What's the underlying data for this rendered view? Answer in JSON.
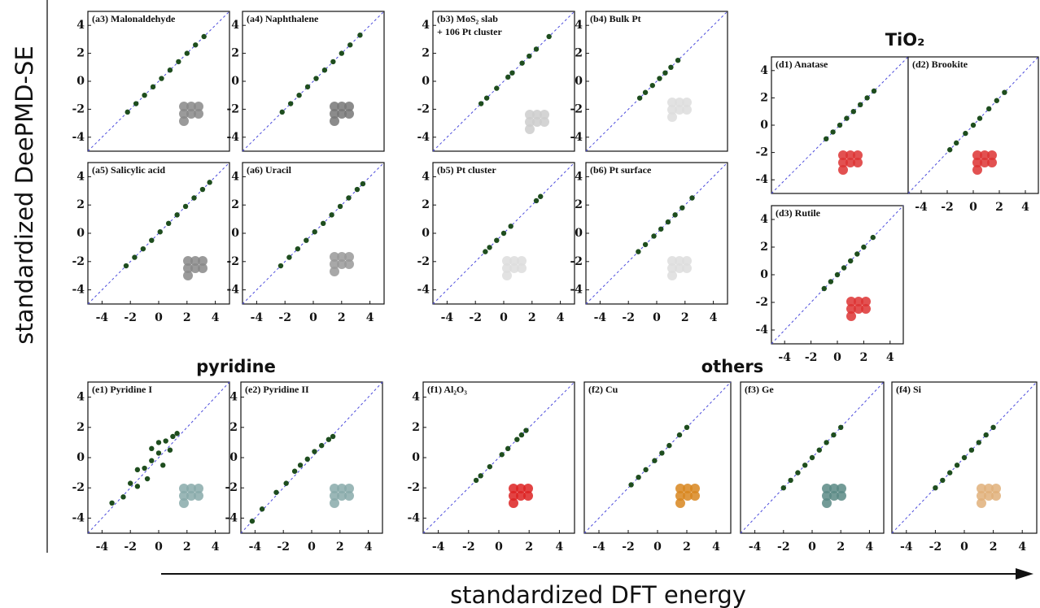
{
  "figure": {
    "y_label": "standardized DeePMD-SE",
    "x_label": "standardized DFT energy",
    "group_titles": [
      "TiO₂",
      "pyridine",
      "others"
    ]
  },
  "chart_data": [
    {
      "type": "scatter",
      "title": "(a3) Malonaldehyde",
      "color": "#1e4d1e",
      "xlim": [
        -5,
        5
      ],
      "ylim": [
        -5,
        5
      ],
      "yticks": [
        -4,
        -2,
        0,
        2,
        4
      ],
      "x": [
        -2.2,
        -1.6,
        -1,
        -0.4,
        0.2,
        0.8,
        1.4,
        2,
        2.6,
        3.2
      ],
      "y": [
        -2.2,
        -1.6,
        -1,
        -0.4,
        0.2,
        0.8,
        1.4,
        2,
        2.6,
        3.2
      ]
    },
    {
      "type": "scatter",
      "title": "(a4) Naphthalene",
      "color": "#1e4d1e",
      "xlim": [
        -5,
        5
      ],
      "ylim": [
        -5,
        5
      ],
      "yticks": [
        -4,
        -2,
        0,
        2,
        4
      ],
      "x": [
        -2.2,
        -1.6,
        -1,
        -0.4,
        0.2,
        0.8,
        1.4,
        2,
        2.6,
        3.3
      ],
      "y": [
        -2.2,
        -1.6,
        -1,
        -0.4,
        0.2,
        0.8,
        1.4,
        2,
        2.6,
        3.3
      ]
    },
    {
      "type": "scatter",
      "title": "(b3) MoS₂ slab",
      "subtitle": "+ 106 Pt cluster",
      "color": "#1e4d1e",
      "xlim": [
        -5,
        5
      ],
      "ylim": [
        -5,
        5
      ],
      "yticks": [
        -4,
        -2,
        0,
        2,
        4
      ],
      "x": [
        -1.6,
        -1.2,
        -0.5,
        0.3,
        0.6,
        1.3,
        1.8,
        2.3,
        3.2
      ],
      "y": [
        -1.6,
        -1.2,
        -0.5,
        0.3,
        0.6,
        1.3,
        1.8,
        2.3,
        3.2
      ]
    },
    {
      "type": "scatter",
      "title": "(b4) Bulk Pt",
      "color": "#1e4d1e",
      "xlim": [
        -5,
        5
      ],
      "ylim": [
        -5,
        5
      ],
      "yticks": [
        -4,
        -2,
        0,
        2,
        4
      ],
      "x": [
        -1.2,
        -0.8,
        -0.3,
        0.2,
        0.6,
        1,
        1.5
      ],
      "y": [
        -1.2,
        -0.8,
        -0.3,
        0.2,
        0.6,
        1,
        1.5
      ]
    },
    {
      "type": "scatter",
      "title": "(a5) Salicylic acid",
      "color": "#1e4d1e",
      "xlim": [
        -5,
        5
      ],
      "ylim": [
        -5,
        5
      ],
      "xticks": [
        -4,
        -2,
        0,
        2,
        4
      ],
      "yticks": [
        -4,
        -2,
        0,
        2,
        4
      ],
      "x": [
        -2.3,
        -1.7,
        -1.1,
        -0.5,
        0.1,
        0.7,
        1.3,
        1.9,
        2.5,
        3.1,
        3.6
      ],
      "y": [
        -2.3,
        -1.7,
        -1.1,
        -0.5,
        0.1,
        0.7,
        1.3,
        1.9,
        2.5,
        3.1,
        3.6
      ]
    },
    {
      "type": "scatter",
      "title": "(a6) Uracil",
      "color": "#1e4d1e",
      "xlim": [
        -5,
        5
      ],
      "ylim": [
        -5,
        5
      ],
      "xticks": [
        -4,
        -2,
        0,
        2,
        4
      ],
      "yticks": [
        -4,
        -2,
        0,
        2,
        4
      ],
      "x": [
        -2.3,
        -1.7,
        -1.1,
        -0.5,
        0.1,
        0.7,
        1.3,
        1.9,
        2.5,
        3.1,
        3.5
      ],
      "y": [
        -2.3,
        -1.7,
        -1.1,
        -0.5,
        0.1,
        0.7,
        1.3,
        1.9,
        2.5,
        3.1,
        3.5
      ]
    },
    {
      "type": "scatter",
      "title": "(b5) Pt cluster",
      "color": "#1e4d1e",
      "xlim": [
        -5,
        5
      ],
      "ylim": [
        -5,
        5
      ],
      "xticks": [
        -4,
        -2,
        0,
        2,
        4
      ],
      "yticks": [
        -4,
        -2,
        0,
        2,
        4
      ],
      "x": [
        -1.3,
        -1,
        -0.5,
        0,
        0.5,
        2.3,
        2.6
      ],
      "y": [
        -1.3,
        -1,
        -0.5,
        0,
        0.5,
        2.3,
        2.6
      ]
    },
    {
      "type": "scatter",
      "title": "(b6) Pt surface",
      "color": "#1e4d1e",
      "xlim": [
        -5,
        5
      ],
      "ylim": [
        -5,
        5
      ],
      "xticks": [
        -4,
        -2,
        0,
        2,
        4
      ],
      "yticks": [
        -4,
        -2,
        0,
        2,
        4
      ],
      "x": [
        -1.3,
        -0.8,
        -0.2,
        0.3,
        0.8,
        1.3,
        1.8,
        2.5
      ],
      "y": [
        -1.3,
        -0.8,
        -0.2,
        0.3,
        0.8,
        1.3,
        1.8,
        2.5
      ]
    },
    {
      "type": "scatter",
      "title": "(d1) Anatase",
      "color": "#1e4d1e",
      "xlim": [
        -5,
        5
      ],
      "ylim": [
        -5,
        5
      ],
      "yticks": [
        -4,
        -2,
        0,
        2,
        4
      ],
      "x": [
        -1,
        -0.5,
        0,
        0.5,
        1,
        1.5,
        2,
        2.5
      ],
      "y": [
        -1,
        -0.5,
        0,
        0.5,
        1,
        1.5,
        2,
        2.5
      ]
    },
    {
      "type": "scatter",
      "title": "(d2) Brookite",
      "color": "#1e4d1e",
      "xlim": [
        -5,
        5
      ],
      "ylim": [
        -5,
        5
      ],
      "xticks": [
        -4,
        -2,
        0,
        2,
        4
      ],
      "x": [
        -1.8,
        -1.3,
        -0.6,
        0,
        0.5,
        1.2,
        1.8,
        2.4
      ],
      "y": [
        -1.8,
        -1.3,
        -0.6,
        0,
        0.5,
        1.2,
        1.8,
        2.4
      ]
    },
    {
      "type": "scatter",
      "title": "(d3) Rutile",
      "color": "#1e4d1e",
      "xlim": [
        -5,
        5
      ],
      "ylim": [
        -5,
        5
      ],
      "xticks": [
        -4,
        -2,
        0,
        2,
        4
      ],
      "yticks": [
        -4,
        -2,
        0,
        2,
        4
      ],
      "x": [
        -1,
        -0.5,
        0,
        0.5,
        1,
        1.5,
        2,
        2.7
      ],
      "y": [
        -1,
        -0.5,
        0,
        0.5,
        1,
        1.5,
        2,
        2.7
      ]
    },
    {
      "type": "scatter",
      "title": "(e1) Pyridine I",
      "color": "#1e4d1e",
      "xlim": [
        -5,
        5
      ],
      "ylim": [
        -5,
        5
      ],
      "xticks": [
        -4,
        -2,
        0,
        2,
        4
      ],
      "yticks": [
        -4,
        -2,
        0,
        2,
        4
      ],
      "x": [
        -3.3,
        -2.5,
        -2,
        -1.5,
        -1.5,
        -1,
        -0.5,
        -0.5,
        0,
        0,
        0.5,
        0.8,
        1,
        1.3,
        -0.8,
        0.3
      ],
      "y": [
        -3,
        -2.6,
        -1.7,
        -1.9,
        -0.8,
        -0.7,
        -0.2,
        0.6,
        0.3,
        1,
        1.1,
        0.5,
        1.4,
        1.6,
        -1.4,
        -0.5
      ]
    },
    {
      "type": "scatter",
      "title": "(e2) Pyridine II",
      "color": "#1e4d1e",
      "xlim": [
        -5,
        5
      ],
      "ylim": [
        -5,
        5
      ],
      "xticks": [
        -4,
        -2,
        0,
        2,
        4
      ],
      "yticks": [
        -4,
        -2,
        0,
        2,
        4
      ],
      "x": [
        -4.2,
        -3.5,
        -2.5,
        -1.8,
        -1.2,
        -0.8,
        -0.3,
        0.2,
        0.7,
        1.2,
        1.5
      ],
      "y": [
        -4.2,
        -3.4,
        -2.3,
        -1.7,
        -0.9,
        -0.5,
        -0.1,
        0.4,
        0.8,
        1.2,
        1.4
      ]
    },
    {
      "type": "scatter",
      "title": "(f1) Al₂O₃",
      "color": "#1e4d1e",
      "xlim": [
        -5,
        5
      ],
      "ylim": [
        -5,
        5
      ],
      "xticks": [
        -4,
        -2,
        0,
        2,
        4
      ],
      "yticks": [
        -4,
        -2,
        0,
        2,
        4
      ],
      "x": [
        -1.5,
        -1.2,
        -0.6,
        0.2,
        0.6,
        1.2,
        1.5,
        1.8
      ],
      "y": [
        -1.5,
        -1.2,
        -0.6,
        0.2,
        0.6,
        1.2,
        1.5,
        1.8
      ]
    },
    {
      "type": "scatter",
      "title": "(f2) Cu",
      "color": "#1e4d1e",
      "xlim": [
        -5,
        5
      ],
      "ylim": [
        -5,
        5
      ],
      "xticks": [
        -4,
        -2,
        0,
        2,
        4
      ],
      "x": [
        -1.8,
        -1.3,
        -0.8,
        -0.2,
        0.3,
        0.8,
        1.5,
        2
      ],
      "y": [
        -1.8,
        -1.3,
        -0.8,
        -0.2,
        0.3,
        0.8,
        1.5,
        2
      ]
    },
    {
      "type": "scatter",
      "title": "(f3) Ge",
      "color": "#1e4d1e",
      "xlim": [
        -5,
        5
      ],
      "ylim": [
        -5,
        5
      ],
      "xticks": [
        -4,
        -2,
        0,
        2,
        4
      ],
      "x": [
        -2,
        -1.5,
        -1,
        -0.5,
        0,
        0.5,
        1,
        1.5,
        2
      ],
      "y": [
        -2,
        -1.5,
        -1,
        -0.5,
        0,
        0.5,
        1,
        1.5,
        2
      ]
    },
    {
      "type": "scatter",
      "title": "(f4) Si",
      "color": "#1e4d1e",
      "xlim": [
        -5,
        5
      ],
      "ylim": [
        -5,
        5
      ],
      "xticks": [
        -4,
        -2,
        0,
        2,
        4
      ],
      "x": [
        -2,
        -1.5,
        -1,
        -0.5,
        0,
        0.5,
        1,
        1.5,
        2
      ],
      "y": [
        -2,
        -1.5,
        -1,
        -0.5,
        0,
        0.5,
        1,
        1.5,
        2
      ]
    }
  ]
}
